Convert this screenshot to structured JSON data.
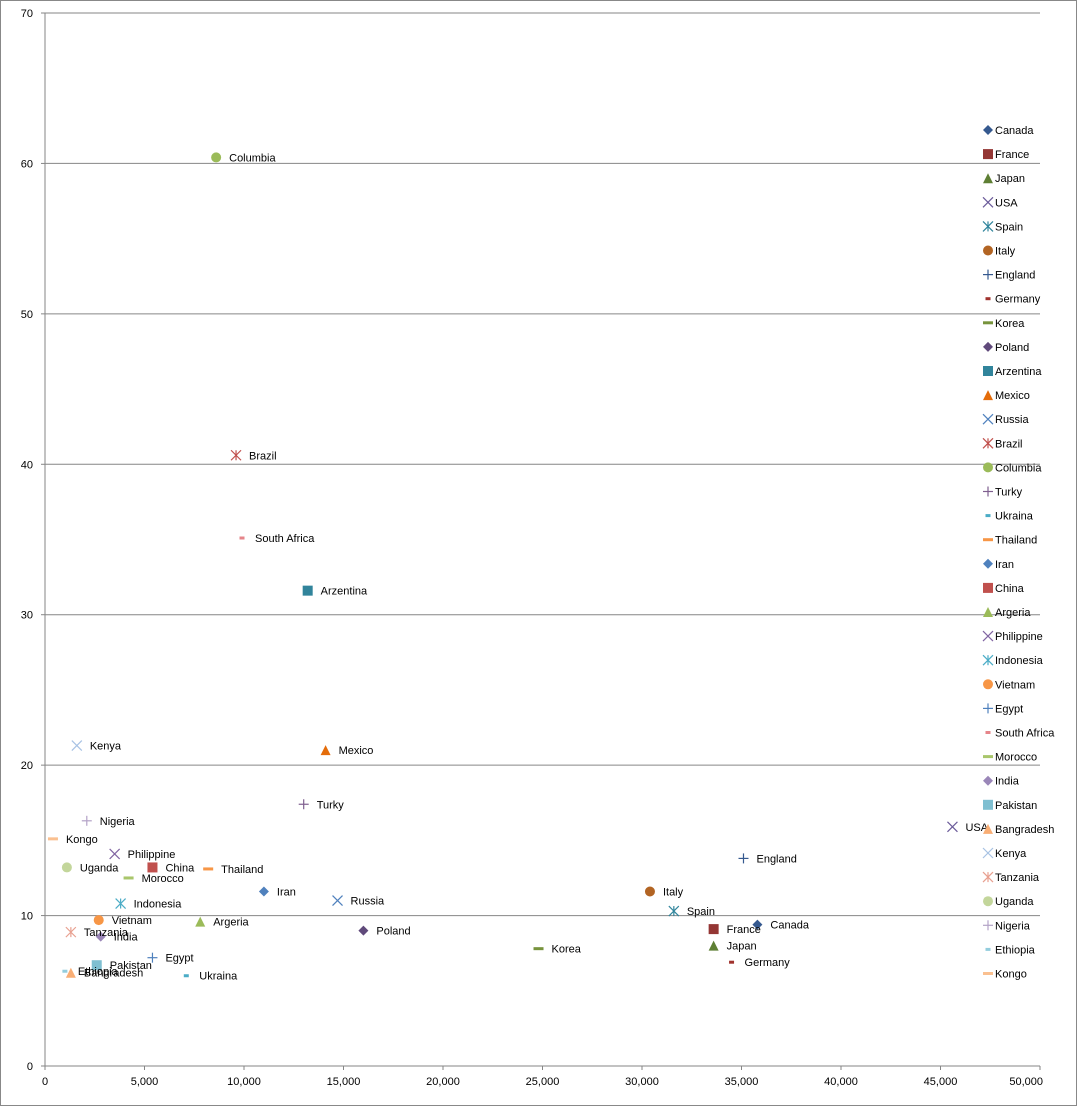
{
  "chart_data": {
    "type": "scatter",
    "title": "",
    "xlabel": "",
    "ylabel": "",
    "xlim": [
      0,
      50000
    ],
    "ylim": [
      0,
      70
    ],
    "x_ticks": [
      0,
      5000,
      10000,
      15000,
      20000,
      25000,
      30000,
      35000,
      40000,
      45000,
      50000
    ],
    "x_tick_labels": [
      "0",
      "5,000",
      "10,000",
      "15,000",
      "20,000",
      "25,000",
      "30,000",
      "35,000",
      "40,000",
      "45,000",
      "50,000"
    ],
    "y_ticks": [
      0,
      10,
      20,
      30,
      40,
      50,
      60,
      70
    ],
    "y_tick_labels": [
      "0",
      "10",
      "20",
      "30",
      "40",
      "50",
      "60",
      "70"
    ],
    "grid": "horizontal major gridlines",
    "legend_position": "right",
    "series": [
      {
        "name": "Canada",
        "x": 35800,
        "y": 9.4,
        "marker": "diamond",
        "color": "#35598F"
      },
      {
        "name": "France",
        "x": 33600,
        "y": 9.1,
        "marker": "square",
        "color": "#943634"
      },
      {
        "name": "Japan",
        "x": 33600,
        "y": 8.0,
        "marker": "triangle",
        "color": "#5E7F34"
      },
      {
        "name": "USA",
        "x": 45600,
        "y": 15.9,
        "marker": "x",
        "color": "#6B5B9A"
      },
      {
        "name": "Spain",
        "x": 31600,
        "y": 10.3,
        "marker": "star",
        "color": "#31859C"
      },
      {
        "name": "Italy",
        "x": 30400,
        "y": 11.6,
        "marker": "circle",
        "color": "#B26423"
      },
      {
        "name": "England",
        "x": 35100,
        "y": 13.8,
        "marker": "plus",
        "color": "#35598F"
      },
      {
        "name": "Germany",
        "x": 34500,
        "y": 6.9,
        "marker": "dash",
        "color": "#A0322D"
      },
      {
        "name": "Korea",
        "x": 24800,
        "y": 7.8,
        "marker": "bar",
        "color": "#77933C"
      },
      {
        "name": "Poland",
        "x": 16000,
        "y": 9.0,
        "marker": "diamond",
        "color": "#604A7B"
      },
      {
        "name": "Arzentina",
        "x": 13200,
        "y": 31.6,
        "marker": "square",
        "color": "#31849B"
      },
      {
        "name": "Mexico",
        "x": 14100,
        "y": 21.0,
        "marker": "triangle",
        "color": "#E46C0A"
      },
      {
        "name": "Russia",
        "x": 14700,
        "y": 11.0,
        "marker": "x",
        "color": "#4F81BD"
      },
      {
        "name": "Brazil",
        "x": 9600,
        "y": 40.6,
        "marker": "star",
        "color": "#C0504D"
      },
      {
        "name": "Columbia",
        "x": 8600,
        "y": 60.4,
        "marker": "circle",
        "color": "#9BBB59"
      },
      {
        "name": "Turky",
        "x": 13000,
        "y": 17.4,
        "marker": "plus",
        "color": "#7F5F8F"
      },
      {
        "name": "Ukraina",
        "x": 7100,
        "y": 6.0,
        "marker": "dash",
        "color": "#4BACC6"
      },
      {
        "name": "Thailand",
        "x": 8200,
        "y": 13.1,
        "marker": "bar",
        "color": "#F79646"
      },
      {
        "name": "Iran",
        "x": 11000,
        "y": 11.6,
        "marker": "diamond",
        "color": "#4F81BD"
      },
      {
        "name": "China",
        "x": 5400,
        "y": 13.2,
        "marker": "square",
        "color": "#C0504D"
      },
      {
        "name": "Argeria",
        "x": 7800,
        "y": 9.6,
        "marker": "triangle",
        "color": "#9BBB59"
      },
      {
        "name": "Philippine",
        "x": 3500,
        "y": 14.1,
        "marker": "x",
        "color": "#8064A2"
      },
      {
        "name": "Indonesia",
        "x": 3800,
        "y": 10.8,
        "marker": "star",
        "color": "#4BACC6"
      },
      {
        "name": "Vietnam",
        "x": 2700,
        "y": 9.7,
        "marker": "circle",
        "color": "#F79646"
      },
      {
        "name": "Egypt",
        "x": 5400,
        "y": 7.2,
        "marker": "plus",
        "color": "#4F81BD"
      },
      {
        "name": "South Africa",
        "x": 9900,
        "y": 35.1,
        "marker": "dash",
        "color": "#E6858A"
      },
      {
        "name": "Morocco",
        "x": 4200,
        "y": 12.5,
        "marker": "bar",
        "color": "#A9C66B"
      },
      {
        "name": "India",
        "x": 2800,
        "y": 8.6,
        "marker": "diamond",
        "color": "#9A86B8"
      },
      {
        "name": "Pakistan",
        "x": 2600,
        "y": 6.7,
        "marker": "square",
        "color": "#7FBFD1"
      },
      {
        "name": "Bangradesh",
        "x": 1300,
        "y": 6.2,
        "marker": "triangle",
        "color": "#F9AE75"
      },
      {
        "name": "Kenya",
        "x": 1600,
        "y": 21.3,
        "marker": "x",
        "color": "#A7C2E4"
      },
      {
        "name": "Tanzania",
        "x": 1300,
        "y": 8.9,
        "marker": "star",
        "color": "#E8A090"
      },
      {
        "name": "Uganda",
        "x": 1100,
        "y": 13.2,
        "marker": "circle",
        "color": "#C3D69B"
      },
      {
        "name": "Nigeria",
        "x": 2100,
        "y": 16.3,
        "marker": "plus",
        "color": "#B3A2C7"
      },
      {
        "name": "Ethiopia",
        "x": 1000,
        "y": 6.3,
        "marker": "dash",
        "color": "#93CDDD"
      },
      {
        "name": "Kongo",
        "x": 400,
        "y": 15.1,
        "marker": "bar",
        "color": "#FAC090"
      }
    ]
  }
}
